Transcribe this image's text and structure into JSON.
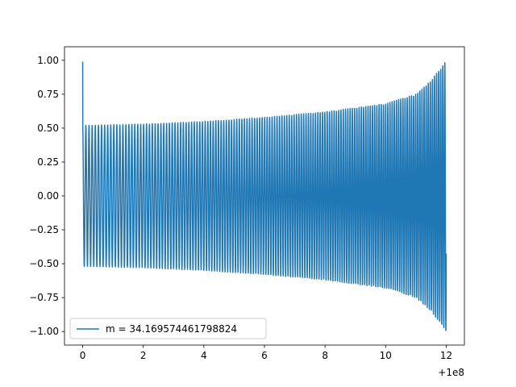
{
  "chart_data": {
    "type": "line",
    "title": "",
    "xlabel": "",
    "ylabel": "",
    "x_offset_label": "+1e8",
    "xlim": [
      -0.6,
      12.6
    ],
    "ylim": [
      -1.1,
      1.1
    ],
    "x_ticks": [
      0,
      2,
      4,
      6,
      8,
      10,
      12
    ],
    "x_tick_labels": [
      "0",
      "2",
      "4",
      "6",
      "8",
      "10",
      "12"
    ],
    "y_ticks": [
      1.0,
      0.75,
      0.5,
      0.25,
      0.0,
      -0.25,
      -0.5,
      -0.75,
      -1.0
    ],
    "y_tick_labels": [
      "1.00",
      "0.75",
      "0.50",
      "0.25",
      "0.00",
      "−0.25",
      "−0.50",
      "−0.75",
      "−1.00"
    ],
    "grid": false,
    "legend_position": "lower-left",
    "series": [
      {
        "name": "m = 34.169574461798824",
        "color": "#1f77b4",
        "description": "oscillating signal; initial spike to 1.0, then envelope growing from ~0.52 to 1.0 with increasing frequency",
        "envelope": {
          "x": [
            0.0,
            0.1,
            2,
            4,
            6,
            8,
            10,
            11,
            11.5,
            12.0
          ],
          "upper": [
            0.99,
            0.52,
            0.53,
            0.55,
            0.58,
            0.62,
            0.68,
            0.75,
            0.85,
            1.0
          ],
          "lower": [
            -0.52,
            -0.52,
            -0.53,
            -0.55,
            -0.58,
            -0.62,
            -0.68,
            -0.75,
            -0.85,
            -1.0
          ]
        }
      }
    ]
  }
}
